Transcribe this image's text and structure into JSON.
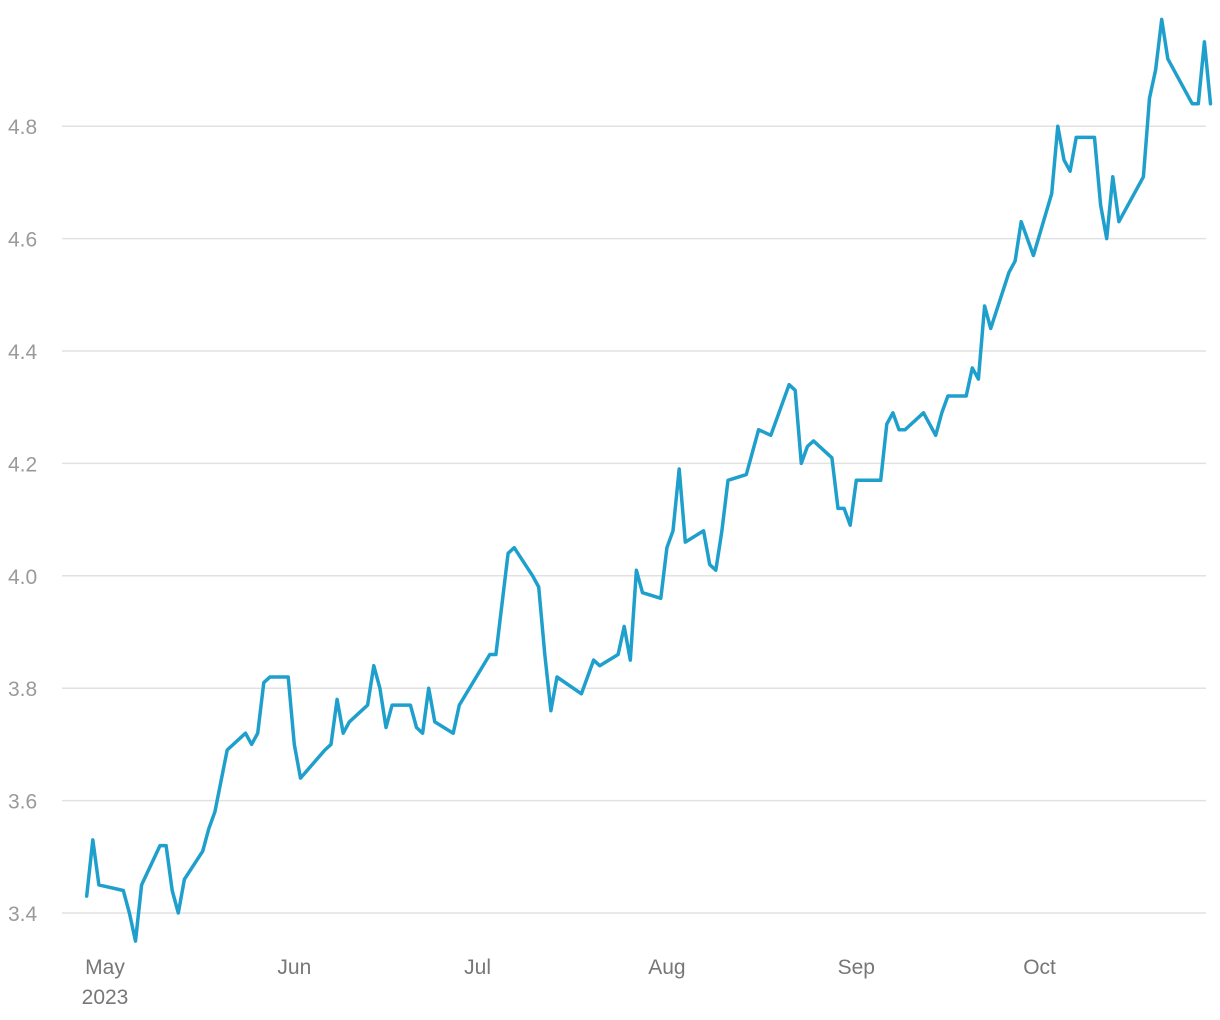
{
  "chart_data": {
    "type": "line",
    "title": "",
    "xlabel": "",
    "ylabel": "",
    "ylim": [
      3.36,
      4.98
    ],
    "grid": "horizontal",
    "colors": {
      "line": "#1fa0cc",
      "grid": "#e2e2e2",
      "tick_text": "#9a9a9a"
    },
    "yticks": [
      "3.4",
      "3.6",
      "3.8",
      "4.0",
      "4.2",
      "4.4",
      "4.6",
      "4.8"
    ],
    "xticks": [
      {
        "date": "2023-05-01",
        "label": "May",
        "sublabel": "2023"
      },
      {
        "date": "2023-06-01",
        "label": "Jun"
      },
      {
        "date": "2023-07-01",
        "label": "Jul"
      },
      {
        "date": "2023-08-01",
        "label": "Aug"
      },
      {
        "date": "2023-09-01",
        "label": "Sep"
      },
      {
        "date": "2023-10-01",
        "label": "Oct"
      }
    ],
    "series": [
      {
        "points": [
          [
            "2023-04-28",
            3.43
          ],
          [
            "2023-04-29",
            3.53
          ],
          [
            "2023-04-30",
            3.45
          ],
          [
            "2023-05-04",
            3.44
          ],
          [
            "2023-05-05",
            3.4
          ],
          [
            "2023-05-06",
            3.35
          ],
          [
            "2023-05-07",
            3.45
          ],
          [
            "2023-05-10",
            3.52
          ],
          [
            "2023-05-11",
            3.52
          ],
          [
            "2023-05-12",
            3.44
          ],
          [
            "2023-05-13",
            3.4
          ],
          [
            "2023-05-14",
            3.46
          ],
          [
            "2023-05-17",
            3.51
          ],
          [
            "2023-05-18",
            3.55
          ],
          [
            "2023-05-19",
            3.58
          ],
          [
            "2023-05-21",
            3.69
          ],
          [
            "2023-05-24",
            3.72
          ],
          [
            "2023-05-25",
            3.7
          ],
          [
            "2023-05-26",
            3.72
          ],
          [
            "2023-05-27",
            3.81
          ],
          [
            "2023-05-28",
            3.82
          ],
          [
            "2023-05-31",
            3.82
          ],
          [
            "2023-06-01",
            3.7
          ],
          [
            "2023-06-02",
            3.64
          ],
          [
            "2023-06-06",
            3.69
          ],
          [
            "2023-06-07",
            3.7
          ],
          [
            "2023-06-08",
            3.78
          ],
          [
            "2023-06-09",
            3.72
          ],
          [
            "2023-06-10",
            3.74
          ],
          [
            "2023-06-13",
            3.77
          ],
          [
            "2023-06-14",
            3.84
          ],
          [
            "2023-06-15",
            3.8
          ],
          [
            "2023-06-16",
            3.73
          ],
          [
            "2023-06-17",
            3.77
          ],
          [
            "2023-06-20",
            3.77
          ],
          [
            "2023-06-21",
            3.73
          ],
          [
            "2023-06-22",
            3.72
          ],
          [
            "2023-06-23",
            3.8
          ],
          [
            "2023-06-24",
            3.74
          ],
          [
            "2023-06-27",
            3.72
          ],
          [
            "2023-06-28",
            3.77
          ],
          [
            "2023-07-03",
            3.86
          ],
          [
            "2023-07-04",
            3.86
          ],
          [
            "2023-07-06",
            4.04
          ],
          [
            "2023-07-07",
            4.05
          ],
          [
            "2023-07-10",
            4.0
          ],
          [
            "2023-07-11",
            3.98
          ],
          [
            "2023-07-12",
            3.86
          ],
          [
            "2023-07-13",
            3.76
          ],
          [
            "2023-07-14",
            3.82
          ],
          [
            "2023-07-18",
            3.79
          ],
          [
            "2023-07-20",
            3.85
          ],
          [
            "2023-07-21",
            3.84
          ],
          [
            "2023-07-24",
            3.86
          ],
          [
            "2023-07-25",
            3.91
          ],
          [
            "2023-07-26",
            3.85
          ],
          [
            "2023-07-27",
            4.01
          ],
          [
            "2023-07-28",
            3.97
          ],
          [
            "2023-07-31",
            3.96
          ],
          [
            "2023-08-01",
            4.05
          ],
          [
            "2023-08-02",
            4.08
          ],
          [
            "2023-08-03",
            4.19
          ],
          [
            "2023-08-04",
            4.06
          ],
          [
            "2023-08-07",
            4.08
          ],
          [
            "2023-08-08",
            4.02
          ],
          [
            "2023-08-09",
            4.01
          ],
          [
            "2023-08-10",
            4.08
          ],
          [
            "2023-08-11",
            4.17
          ],
          [
            "2023-08-14",
            4.18
          ],
          [
            "2023-08-16",
            4.26
          ],
          [
            "2023-08-18",
            4.25
          ],
          [
            "2023-08-21",
            4.34
          ],
          [
            "2023-08-22",
            4.33
          ],
          [
            "2023-08-23",
            4.2
          ],
          [
            "2023-08-24",
            4.23
          ],
          [
            "2023-08-25",
            4.24
          ],
          [
            "2023-08-28",
            4.21
          ],
          [
            "2023-08-29",
            4.12
          ],
          [
            "2023-08-30",
            4.12
          ],
          [
            "2023-08-31",
            4.09
          ],
          [
            "2023-09-01",
            4.17
          ],
          [
            "2023-09-05",
            4.17
          ],
          [
            "2023-09-06",
            4.27
          ],
          [
            "2023-09-07",
            4.29
          ],
          [
            "2023-09-08",
            4.26
          ],
          [
            "2023-09-09",
            4.26
          ],
          [
            "2023-09-12",
            4.29
          ],
          [
            "2023-09-13",
            4.27
          ],
          [
            "2023-09-14",
            4.25
          ],
          [
            "2023-09-15",
            4.29
          ],
          [
            "2023-09-16",
            4.32
          ],
          [
            "2023-09-19",
            4.32
          ],
          [
            "2023-09-20",
            4.37
          ],
          [
            "2023-09-21",
            4.35
          ],
          [
            "2023-09-22",
            4.48
          ],
          [
            "2023-09-23",
            4.44
          ],
          [
            "2023-09-26",
            4.54
          ],
          [
            "2023-09-27",
            4.56
          ],
          [
            "2023-09-28",
            4.63
          ],
          [
            "2023-09-30",
            4.57
          ],
          [
            "2023-10-03",
            4.68
          ],
          [
            "2023-10-04",
            4.8
          ],
          [
            "2023-10-05",
            4.74
          ],
          [
            "2023-10-06",
            4.72
          ],
          [
            "2023-10-07",
            4.78
          ],
          [
            "2023-10-10",
            4.78
          ],
          [
            "2023-10-11",
            4.66
          ],
          [
            "2023-10-12",
            4.6
          ],
          [
            "2023-10-13",
            4.71
          ],
          [
            "2023-10-14",
            4.63
          ],
          [
            "2023-10-18",
            4.71
          ],
          [
            "2023-10-19",
            4.85
          ],
          [
            "2023-10-20",
            4.9
          ],
          [
            "2023-10-21",
            4.99
          ],
          [
            "2023-10-22",
            4.92
          ],
          [
            "2023-10-26",
            4.84
          ],
          [
            "2023-10-27",
            4.84
          ],
          [
            "2023-10-28",
            4.95
          ],
          [
            "2023-10-29",
            4.84
          ]
        ]
      }
    ]
  }
}
